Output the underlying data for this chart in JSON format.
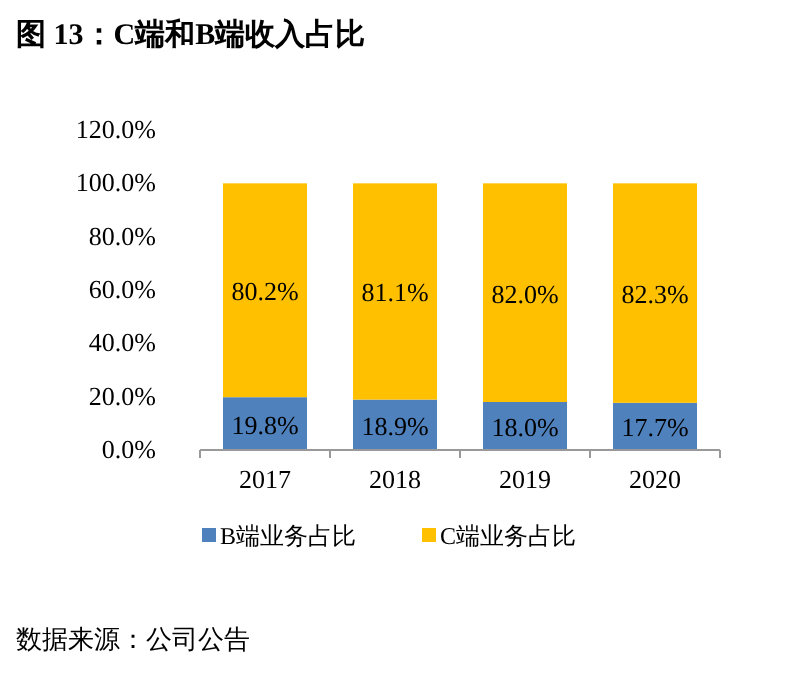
{
  "chart_data": {
    "type": "bar",
    "stacked": true,
    "title": "图 13：C端和B端收入占比",
    "categories": [
      "2017",
      "2018",
      "2019",
      "2020"
    ],
    "series": [
      {
        "name": "B端业务占比",
        "color": "#4f81bd",
        "values": [
          19.8,
          18.9,
          18.0,
          17.7
        ],
        "value_labels": [
          "19.8%",
          "18.9%",
          "18.0%",
          "17.7%"
        ]
      },
      {
        "name": "C端业务占比",
        "color": "#ffc000",
        "values": [
          80.2,
          81.1,
          82.0,
          82.3
        ],
        "value_labels": [
          "80.2%",
          "81.1%",
          "82.0%",
          "82.3%"
        ]
      }
    ],
    "ylim": [
      0,
      120
    ],
    "yticks": [
      {
        "value": 0,
        "label": "0.0%"
      },
      {
        "value": 20,
        "label": "20.0%"
      },
      {
        "value": 40,
        "label": "40.0%"
      },
      {
        "value": 60,
        "label": "60.0%"
      },
      {
        "value": 80,
        "label": "80.0%"
      },
      {
        "value": 100,
        "label": "100.0%"
      },
      {
        "value": 120,
        "label": "120.0%"
      }
    ],
    "legend": "bottom",
    "annotations": [
      "数据来源：公司公告"
    ]
  }
}
